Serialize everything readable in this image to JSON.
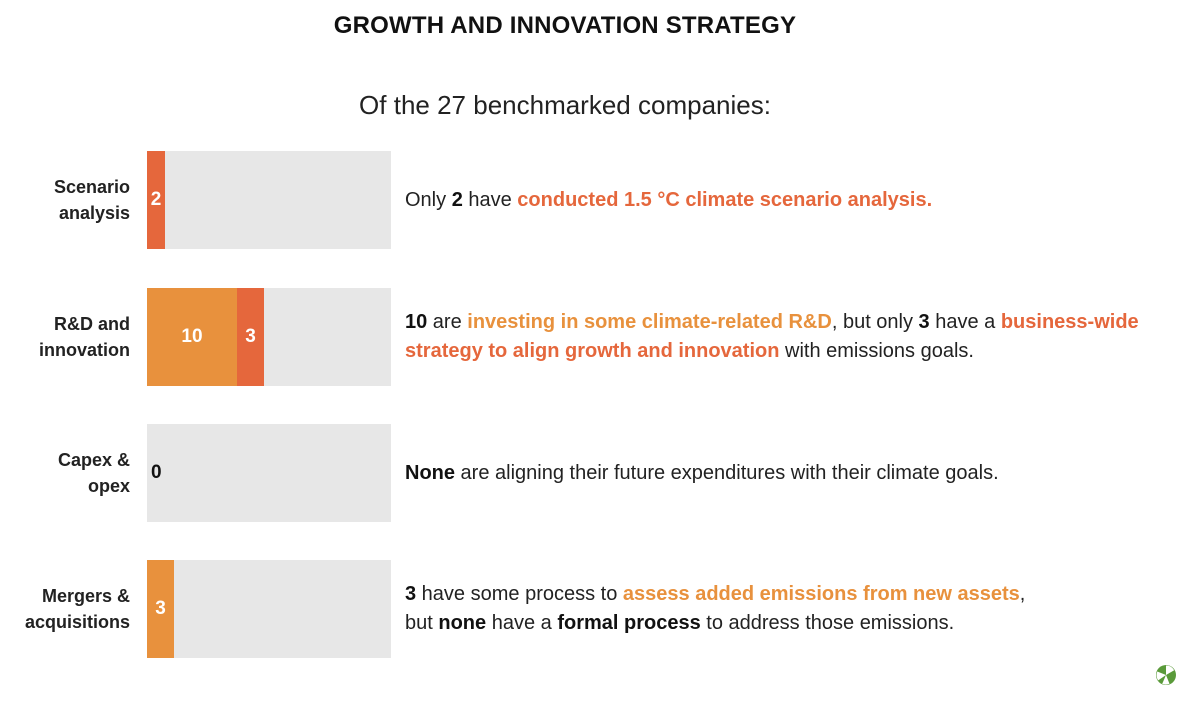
{
  "title": "GROWTH AND INNOVATION STRATEGY",
  "subtitle": "Of the 27 benchmarked companies:",
  "colors": {
    "orange": "#e8913d",
    "red": "#e5673c",
    "track": "#e7e7e7",
    "logo_green": "#5a9a3a"
  },
  "chart_data": {
    "type": "bar",
    "orientation": "horizontal",
    "stacked": true,
    "total": 27,
    "xlim": [
      0,
      27
    ],
    "categories": [
      "Scenario analysis",
      "R&D and innovation",
      "Capex & opex",
      "Mergers & acquisitions"
    ],
    "category_lines": [
      [
        "Scenario",
        "analysis"
      ],
      [
        "R&D and",
        "innovation"
      ],
      [
        "Capex &",
        "opex"
      ],
      [
        "Mergers &",
        "acquisitions"
      ]
    ],
    "rows": [
      {
        "segments": [
          {
            "value": 2,
            "label": "2",
            "color": "#e5673c"
          }
        ]
      },
      {
        "segments": [
          {
            "value": 10,
            "label": "10",
            "color": "#e8913d"
          },
          {
            "value": 3,
            "label": "3",
            "color": "#e5673c"
          }
        ]
      },
      {
        "segments": [],
        "zero_label": "0"
      },
      {
        "segments": [
          {
            "value": 3,
            "label": "3",
            "color": "#e8913d"
          }
        ]
      }
    ]
  },
  "descriptions": [
    {
      "lines": [
        [
          {
            "t": "Only ",
            "s": "n"
          },
          {
            "t": "2",
            "s": "b"
          },
          {
            "t": " have ",
            "s": "n"
          },
          {
            "t": "conducted 1.5 °C climate scenario analysis.",
            "s": "red"
          }
        ]
      ]
    },
    {
      "lines": [
        [
          {
            "t": "10",
            "s": "b"
          },
          {
            "t": " are ",
            "s": "n"
          },
          {
            "t": "investing in some climate-related R&D",
            "s": "orange"
          },
          {
            "t": ", but only ",
            "s": "n"
          },
          {
            "t": "3",
            "s": "b"
          },
          {
            "t": " have a ",
            "s": "n"
          },
          {
            "t": "business-wide",
            "s": "red"
          }
        ],
        [
          {
            "t": "strategy to align growth and innovation",
            "s": "red"
          },
          {
            "t": " with emissions goals.",
            "s": "n"
          }
        ]
      ]
    },
    {
      "lines": [
        [
          {
            "t": "None",
            "s": "b"
          },
          {
            "t": " are aligning their future expenditures with their climate goals.",
            "s": "n"
          }
        ]
      ]
    },
    {
      "lines": [
        [
          {
            "t": "3",
            "s": "b"
          },
          {
            "t": " have some process to ",
            "s": "n"
          },
          {
            "t": "assess added emissions from new assets",
            "s": "orange"
          },
          {
            "t": ",",
            "s": "n"
          }
        ],
        [
          {
            "t": "but ",
            "s": "n"
          },
          {
            "t": "none",
            "s": "b"
          },
          {
            "t": " have a ",
            "s": "n"
          },
          {
            "t": "formal process",
            "s": "b"
          },
          {
            "t": " to address those emissions.",
            "s": "n"
          }
        ]
      ]
    }
  ],
  "logo_icon": "leaf-circle-icon"
}
